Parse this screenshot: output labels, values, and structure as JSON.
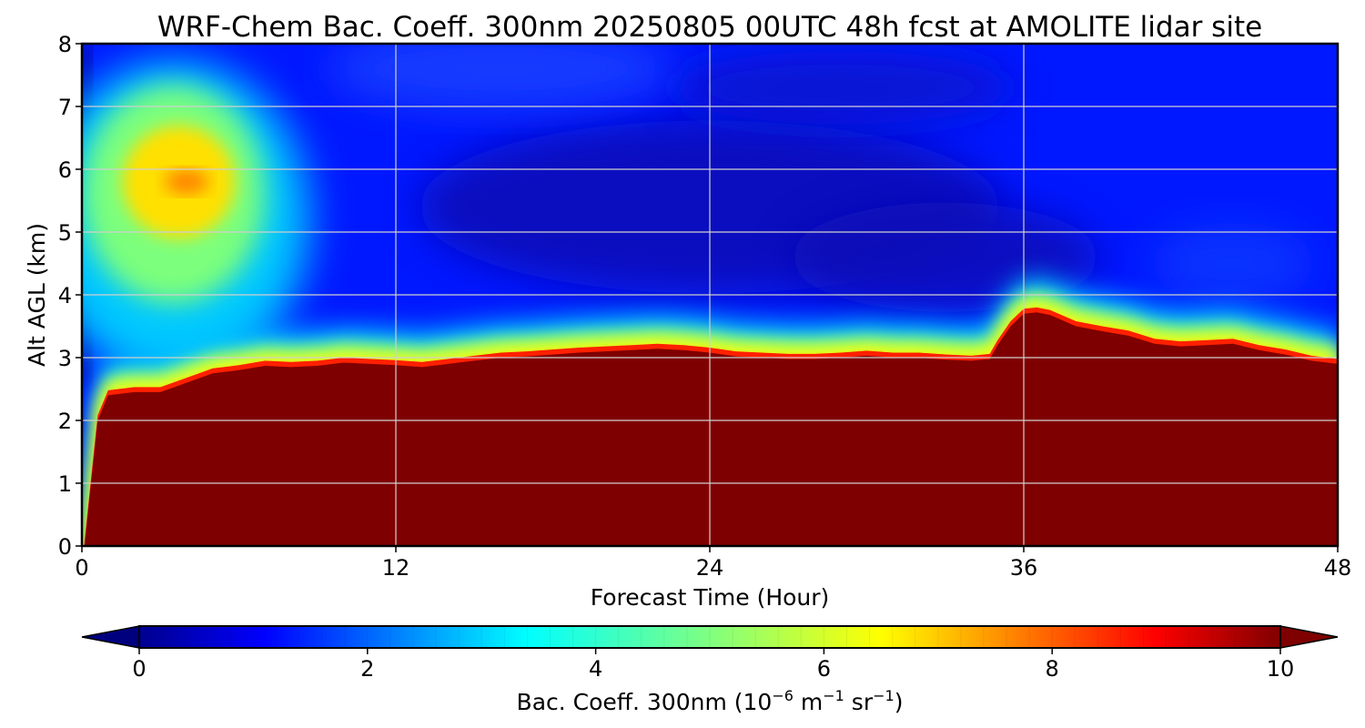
{
  "chart_data": {
    "type": "heatmap",
    "title": "WRF-Chem Bac. Coeff. 300nm  20250805 00UTC 48h fcst at AMOLITE lidar site",
    "xlabel": "Forecast Time (Hour)",
    "ylabel": "Alt AGL (km)",
    "xlim": [
      0,
      48
    ],
    "ylim": [
      0,
      8
    ],
    "x_ticks": [
      "0",
      "12",
      "24",
      "36",
      "48"
    ],
    "y_ticks": [
      "0",
      "1",
      "2",
      "3",
      "4",
      "5",
      "6",
      "7",
      "8"
    ],
    "grid": true,
    "colormap": "jet",
    "colorbar": {
      "orientation": "horizontal",
      "position": "bottom",
      "range": [
        0,
        10
      ],
      "extend": "both",
      "ticks": [
        "0",
        "2",
        "4",
        "6",
        "8",
        "10"
      ],
      "label_main": "Bac. Coeff. 300nm  (10",
      "label_exp1": "−6",
      "label_mid": " m",
      "label_exp2": "−1",
      "label_mid2": " sr",
      "label_exp3": "−1",
      "label_end": ")"
    },
    "boundary_layer_top_km": {
      "hour": [
        0.1,
        0.3,
        0.6,
        1.0,
        2.0,
        3.0,
        4.0,
        5.0,
        6.0,
        7.0,
        8.0,
        9.0,
        10.0,
        11.0,
        12.0,
        13.0,
        14.0,
        15.0,
        16.0,
        17.0,
        18.0,
        19.0,
        20.0,
        21.0,
        22.0,
        23.0,
        24.0,
        25.0,
        26.0,
        27.0,
        28.0,
        29.0,
        30.0,
        31.0,
        32.0,
        33.0,
        34.0,
        34.7,
        35.0,
        35.5,
        36.0,
        36.5,
        37.0,
        38.0,
        39.0,
        40.0,
        41.0,
        42.0,
        43.0,
        44.0,
        45.0,
        46.0,
        47.0,
        48.0
      ],
      "top": [
        0.0,
        0.8,
        2.0,
        2.4,
        2.45,
        2.45,
        2.6,
        2.75,
        2.8,
        2.87,
        2.85,
        2.87,
        2.92,
        2.9,
        2.88,
        2.85,
        2.9,
        2.95,
        3.0,
        3.02,
        3.05,
        3.08,
        3.1,
        3.12,
        3.14,
        3.12,
        3.08,
        3.02,
        3.0,
        2.98,
        2.98,
        3.0,
        3.03,
        3.0,
        3.0,
        2.97,
        2.95,
        2.98,
        3.2,
        3.5,
        3.7,
        3.72,
        3.68,
        3.5,
        3.42,
        3.35,
        3.22,
        3.18,
        3.2,
        3.22,
        3.12,
        3.05,
        2.95,
        2.9
      ]
    },
    "aerosol_plume_peak": {
      "hour": 4,
      "altitude_km": 5.8,
      "value": 7.5
    }
  }
}
